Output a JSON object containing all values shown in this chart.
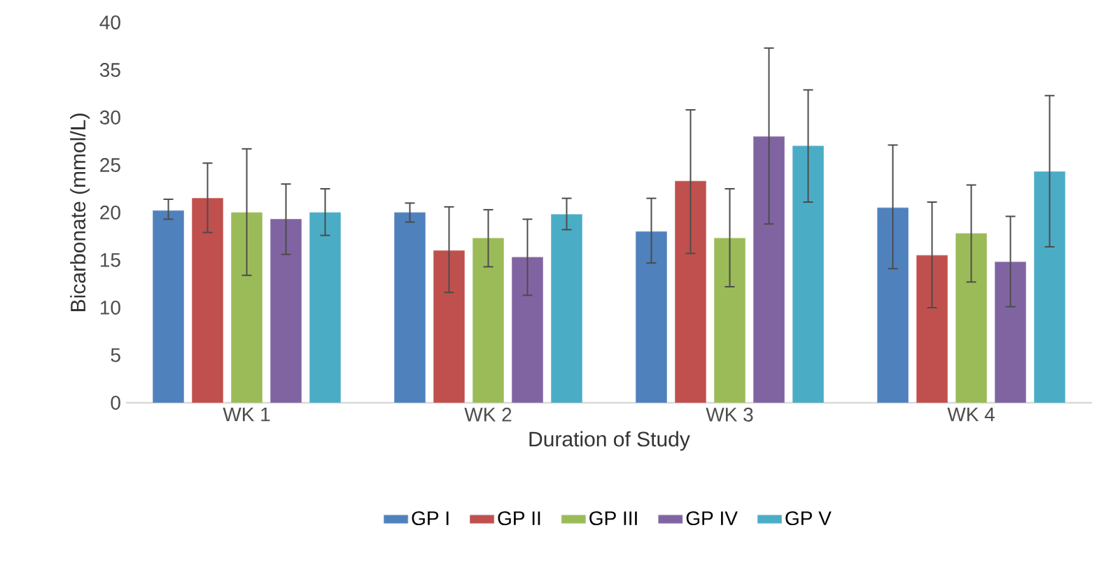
{
  "chart_data": {
    "type": "bar",
    "xlabel": "Duration of Study",
    "ylabel": "Bicarbonate (mmol/L)",
    "categories": [
      "WK 1",
      "WK 2",
      "WK 3",
      "WK 4"
    ],
    "series": [
      {
        "name": "GP I",
        "color": "#4f81bd",
        "values": [
          20.2,
          20.0,
          18.0,
          20.5
        ],
        "errors": [
          [
            19.3,
            21.4
          ],
          [
            19.0,
            21.0
          ],
          [
            14.7,
            21.5
          ],
          [
            14.1,
            27.1
          ]
        ]
      },
      {
        "name": "GP II",
        "color": "#c0504d",
        "values": [
          21.5,
          16.0,
          23.3,
          15.5
        ],
        "errors": [
          [
            17.9,
            25.2
          ],
          [
            11.6,
            20.6
          ],
          [
            15.7,
            30.8
          ],
          [
            10.0,
            21.1
          ]
        ]
      },
      {
        "name": "GP III",
        "color": "#9bbb59",
        "values": [
          20.0,
          17.3,
          17.3,
          17.8
        ],
        "errors": [
          [
            13.4,
            26.7
          ],
          [
            14.3,
            20.3
          ],
          [
            12.2,
            22.5
          ],
          [
            12.7,
            22.9
          ]
        ]
      },
      {
        "name": "GP IV",
        "color": "#8064a2",
        "values": [
          19.3,
          15.3,
          28.0,
          14.8
        ],
        "errors": [
          [
            15.6,
            23.0
          ],
          [
            11.3,
            19.3
          ],
          [
            18.8,
            37.3
          ],
          [
            10.1,
            19.6
          ]
        ]
      },
      {
        "name": "GP V",
        "color": "#4bacc6",
        "values": [
          20.0,
          19.8,
          27.0,
          24.3
        ],
        "errors": [
          [
            17.6,
            22.5
          ],
          [
            18.2,
            21.5
          ],
          [
            21.1,
            32.9
          ],
          [
            16.4,
            32.3
          ]
        ]
      }
    ],
    "ylim": [
      0,
      40
    ],
    "yticks": [
      0,
      5,
      10,
      15,
      20,
      25,
      30,
      35,
      40
    ],
    "grid": false,
    "legend": "bottom"
  }
}
